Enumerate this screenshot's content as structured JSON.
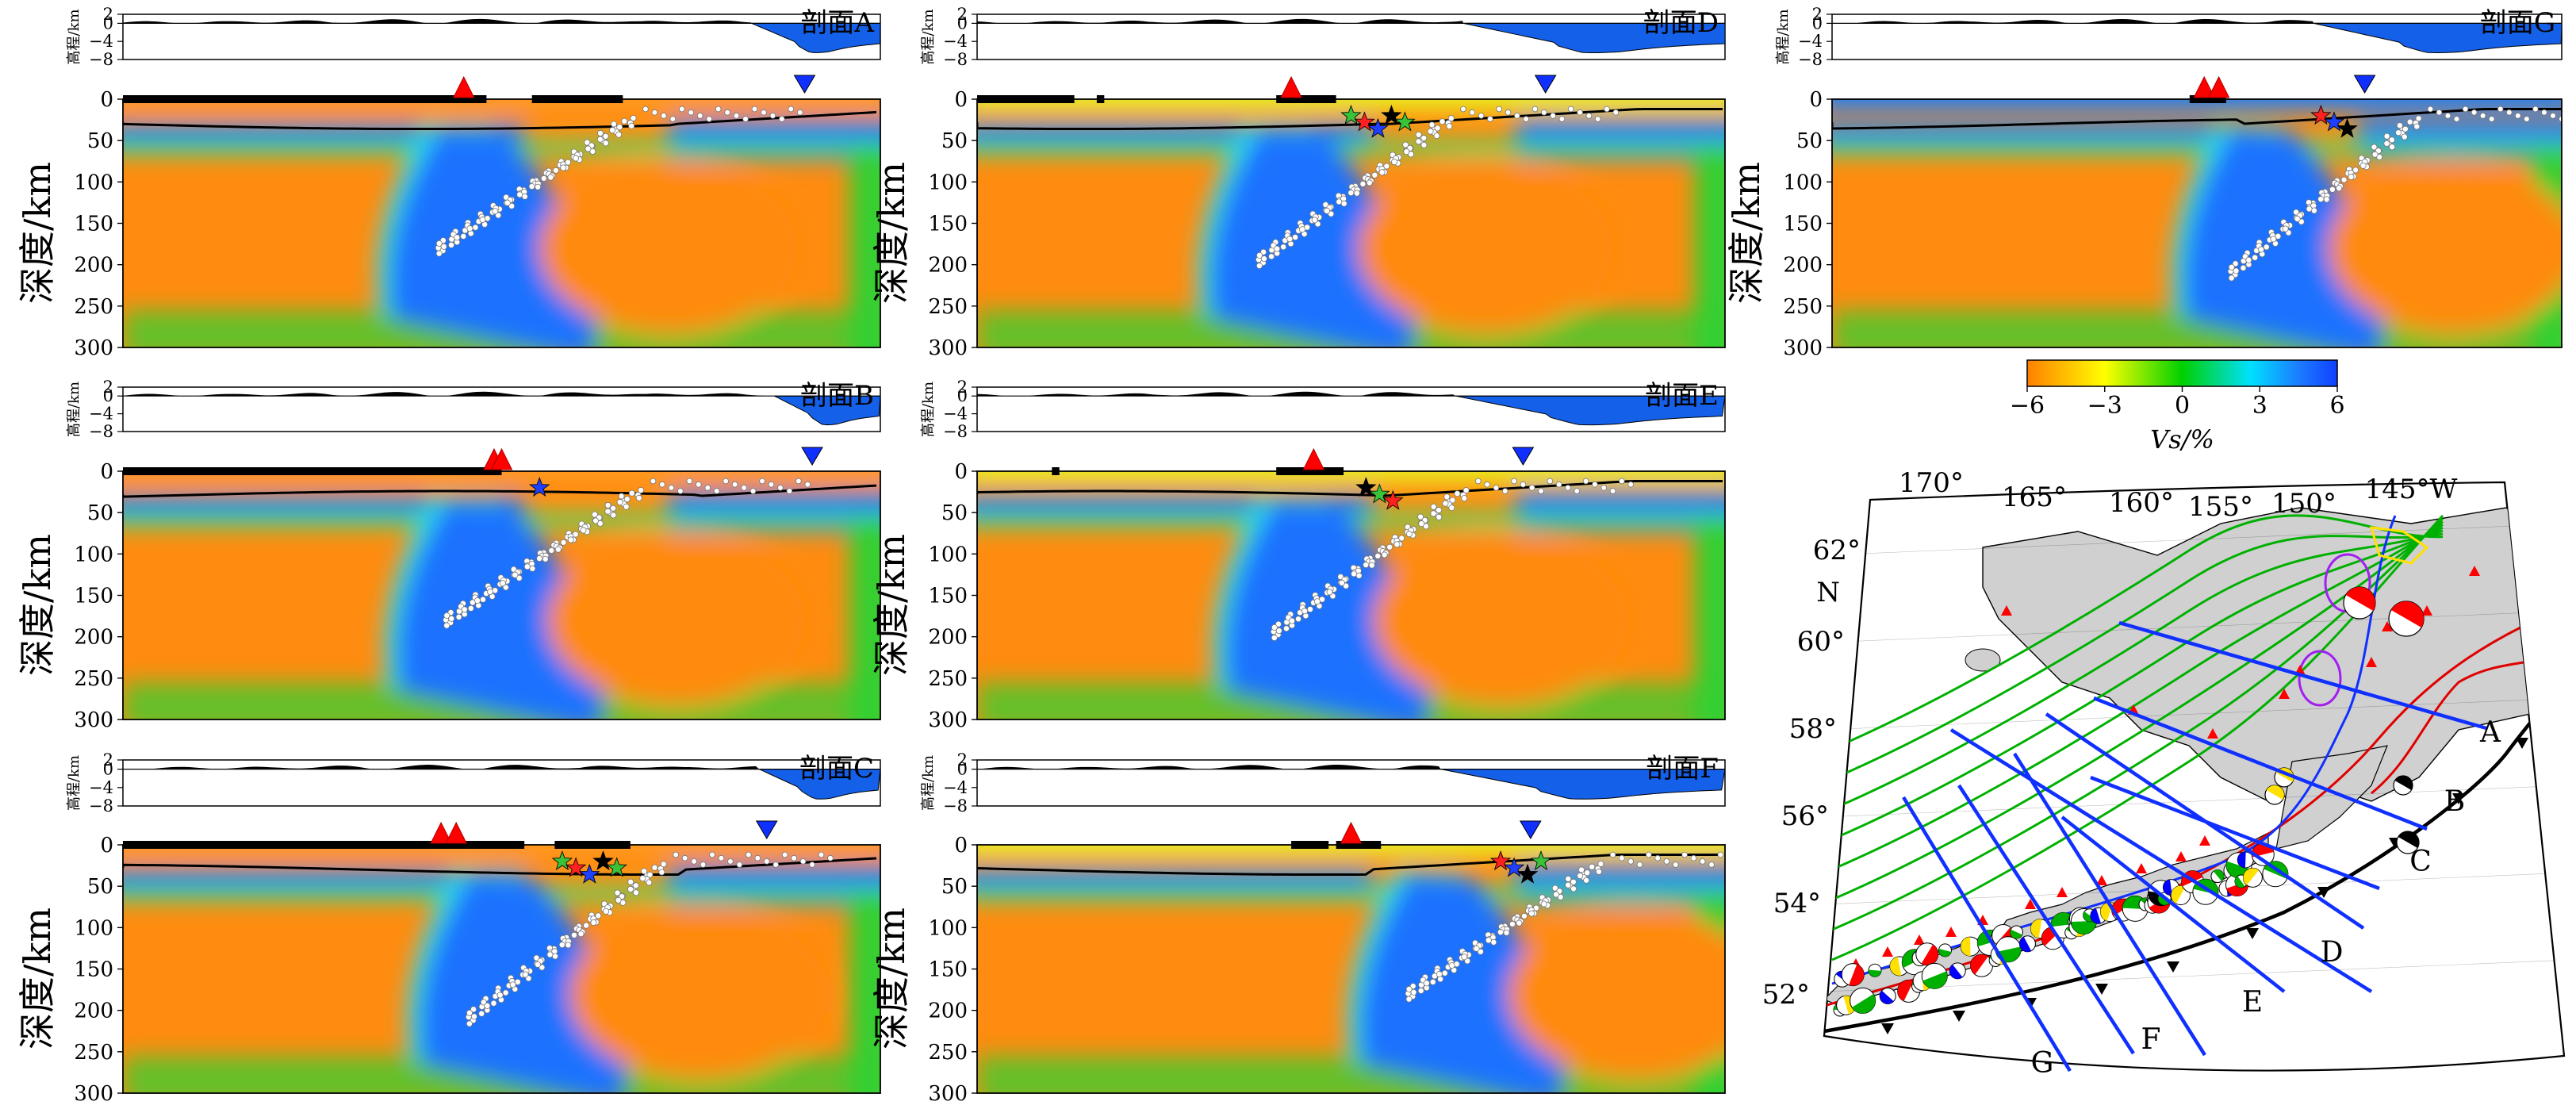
{
  "profiles": [
    {
      "id": "A",
      "title": "剖面A"
    },
    {
      "id": "D",
      "title": "剖面D"
    },
    {
      "id": "G",
      "title": "剖面G"
    },
    {
      "id": "B",
      "title": "剖面B"
    },
    {
      "id": "E",
      "title": "剖面E"
    },
    {
      "id": "C",
      "title": "剖面C"
    },
    {
      "id": "F",
      "title": "剖面F"
    }
  ],
  "axes": {
    "elev_label": "高程/km",
    "depth_label": "深度/km",
    "elev_ticks": [
      "2",
      "0",
      "-4",
      "-8",
      "-4",
      "-8"
    ],
    "elev_tick_values": [
      2,
      0,
      -4,
      -8
    ],
    "elev_tick_text": [
      "2",
      "0",
      "−4",
      "−8"
    ],
    "depth_ticks": [
      "0",
      "50",
      "100",
      "150",
      "200",
      "250",
      "300"
    ]
  },
  "colorbar": {
    "label": "Vs/%",
    "ticks": [
      "−6",
      "−3",
      "0",
      "3",
      "6"
    ],
    "range": [
      -6,
      6
    ],
    "colors": [
      "#ff8000",
      "#ffff00",
      "#00d000",
      "#00e0ff",
      "#0060ff",
      "#1040ff"
    ]
  },
  "map": {
    "lon_labels": [
      "170°",
      "165°",
      "160°",
      "155°",
      "150°",
      "145°W"
    ],
    "lat_labels": [
      "62°",
      "60°",
      "58°",
      "56°",
      "54°",
      "52°"
    ],
    "north_label": "N",
    "profile_labels": [
      "A",
      "B",
      "C",
      "D",
      "E",
      "F",
      "G"
    ]
  },
  "colors": {
    "land": "#d0d0d0",
    "ocean_relief": "#1560e8",
    "profile_lines": "#0000ff",
    "contours": "#00b000",
    "volcano": "#ff0000",
    "trench": "#000000",
    "moho": "#000000"
  }
}
